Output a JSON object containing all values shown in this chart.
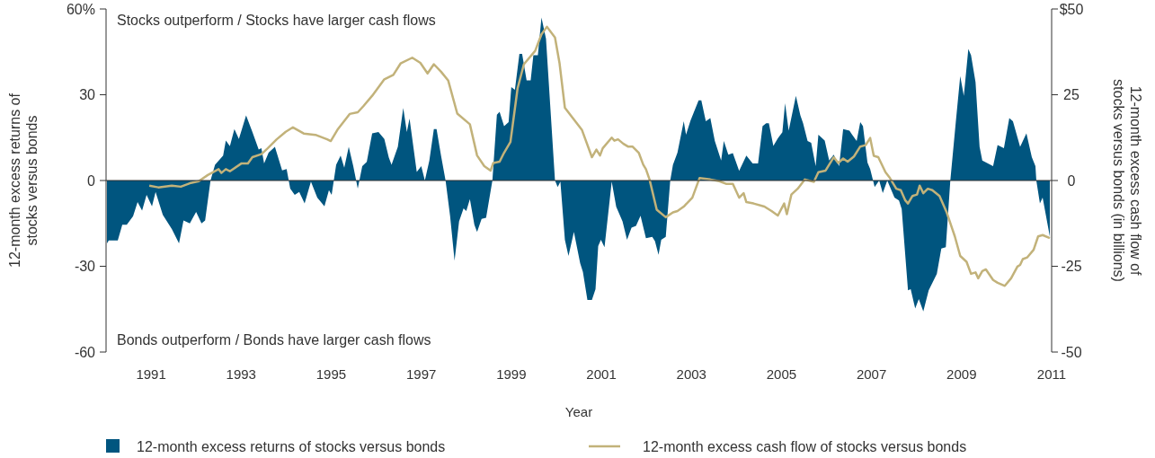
{
  "chart_data": {
    "type": "area",
    "xlabel": "Year",
    "ylabel": "12-month excess returns of stocks versus bonds",
    "y2label": "12-month excess cash flow of stocks versus bonds (in billions)",
    "annotations": [
      "Stocks outperform / Stocks have larger cash flows",
      "Bonds outperform / Bonds have larger cash flows"
    ],
    "xlim": [
      1990,
      2011
    ],
    "xticks": [
      1991,
      1993,
      1995,
      1997,
      1999,
      2001,
      2003,
      2005,
      2007,
      2009,
      2011
    ],
    "ylim": [
      -60,
      60
    ],
    "yticks": [
      {
        "value": 60,
        "label": "60%"
      },
      30,
      0,
      -30,
      -60
    ],
    "y2lim": [
      -50,
      50
    ],
    "y2ticks": [
      {
        "value": 50,
        "label": "$50"
      },
      25,
      0,
      -25,
      -50
    ],
    "ref_lines": [
      {
        "axis": "y",
        "value": 0,
        "color": "#333333"
      }
    ],
    "grid": false,
    "legend": "bottom",
    "series": [
      {
        "name": "12-month excess returns of stocks versus bonds",
        "color": "#00557f",
        "x": [
          1990.02,
          1990.06,
          1990.26,
          1990.36,
          1990.46,
          1990.6,
          1990.7,
          1990.8,
          1990.9,
          1991.02,
          1991.1,
          1991.26,
          1991.46,
          1991.62,
          1991.72,
          1991.86,
          1992,
          1992.12,
          1992.2,
          1992.32,
          1992.42,
          1992.6,
          1992.66,
          1992.75,
          1992.85,
          1992.95,
          1993.11,
          1993.25,
          1993.39,
          1993.45,
          1993.51,
          1993.61,
          1993.75,
          1993.91,
          1994.01,
          1994.09,
          1994.19,
          1994.29,
          1994.41,
          1994.55,
          1994.69,
          1994.85,
          1994.95,
          1995.01,
          1995.11,
          1995.21,
          1995.29,
          1995.39,
          1995.49,
          1995.59,
          1995.69,
          1995.79,
          1995.91,
          1996.05,
          1996.18,
          1996.28,
          1996.34,
          1996.48,
          1996.6,
          1996.68,
          1996.74,
          1996.9,
          1997,
          1997.08,
          1997.18,
          1997.28,
          1997.34,
          1997.44,
          1997.54,
          1997.64,
          1997.74,
          1997.84,
          1997.94,
          1998,
          1998.08,
          1998.18,
          1998.24,
          1998.34,
          1998.44,
          1998.58,
          1998.68,
          1998.74,
          1998.84,
          1998.94,
          1999,
          1999.08,
          1999.18,
          1999.24,
          1999.34,
          1999.43,
          1999.49,
          1999.59,
          1999.67,
          1999.77,
          1999.97,
          2000.03,
          2000.09,
          2000.19,
          2000.27,
          2000.39,
          2000.53,
          2000.59,
          2000.69,
          2000.79,
          2000.87,
          2000.93,
          2000.99,
          2001.07,
          2001.23,
          2001.33,
          2001.47,
          2001.57,
          2001.67,
          2001.77,
          2001.87,
          2001.99,
          2002.13,
          2002.19,
          2002.27,
          2002.33,
          2002.43,
          2002.53,
          2002.59,
          2002.69,
          2002.83,
          2002.88,
          2002.98,
          2003.16,
          2003.22,
          2003.32,
          2003.42,
          2003.52,
          2003.66,
          2003.72,
          2003.82,
          2003.92,
          2004.06,
          2004.22,
          2004.36,
          2004.48,
          2004.58,
          2004.66,
          2004.72,
          2004.82,
          2004.92,
          2005.02,
          2005.08,
          2005.16,
          2005.32,
          2005.42,
          2005.48,
          2005.58,
          2005.66,
          2005.76,
          2005.82,
          2005.96,
          2006.06,
          2006.16,
          2006.28,
          2006.37,
          2006.51,
          2006.57,
          2006.67,
          2006.75,
          2006.81,
          2006.91,
          2006.97,
          2007.07,
          2007.17,
          2007.25,
          2007.35,
          2007.51,
          2007.61,
          2007.67,
          2007.81,
          2007.87,
          2007.97,
          2008.05,
          2008.15,
          2008.27,
          2008.45,
          2008.55,
          2008.65,
          2008.75,
          2008.87,
          2008.97,
          2009.05,
          2009.15,
          2009.21,
          2009.31,
          2009.4,
          2009.46,
          2009.7,
          2009.8,
          2009.94,
          2010.06,
          2010.14,
          2010.3,
          2010.44,
          2010.56,
          2010.64,
          2010.66,
          2010.74,
          2010.8,
          2010.96
        ],
        "values": [
          -22,
          -21,
          -21,
          -15.5,
          -15.5,
          -12.5,
          -7.5,
          -10.5,
          -5,
          -9,
          -4,
          -12,
          -17,
          -22,
          -14,
          -15,
          -11,
          -15,
          -14,
          0,
          5.5,
          8.7,
          14,
          12,
          18,
          14.5,
          22.8,
          17,
          10.8,
          11.3,
          6,
          9.7,
          11.8,
          3.5,
          4,
          -2.8,
          -5,
          -4,
          -8,
          -0.4,
          -6,
          -9,
          -3.4,
          -5,
          5.5,
          8.7,
          4.5,
          11.8,
          5,
          -2.8,
          5,
          6.5,
          16.5,
          17,
          14.5,
          8,
          5.5,
          11.8,
          25.4,
          17,
          21.7,
          3,
          5,
          0,
          7,
          18,
          18,
          8.6,
          0,
          -12.3,
          -28,
          -14.3,
          -9.7,
          -10.7,
          -6.5,
          -15.5,
          -18,
          -13.4,
          -13,
          0,
          23,
          24,
          19,
          20.4,
          32.7,
          31.7,
          44.3,
          44.3,
          35,
          35,
          43.8,
          43.8,
          57,
          49.6,
          0,
          -2.3,
          -0.4,
          -20.7,
          -26.4,
          -18,
          -29,
          -32,
          -41.8,
          -41.8,
          -38,
          -22.9,
          -20.7,
          -23.3,
          -0.4,
          -9.2,
          -14.3,
          -20.7,
          -16.5,
          -15.9,
          -12.3,
          -20.2,
          -19.7,
          -21.2,
          -26,
          -20.7,
          -19.7,
          0,
          5.5,
          9.7,
          20.7,
          16,
          21,
          28,
          28,
          20.7,
          21.8,
          13.8,
          7,
          13.8,
          9,
          9.6,
          3.4,
          8.7,
          6,
          6,
          19,
          20,
          20,
          12.1,
          14.8,
          16.9,
          27,
          17.4,
          29.6,
          22.8,
          20,
          13.8,
          13.2,
          5,
          16,
          14,
          7,
          9,
          5,
          18,
          17.4,
          16,
          13.8,
          20.4,
          19,
          6.3,
          4,
          -2.3,
          0,
          -4.4,
          0,
          -6,
          -7,
          -10,
          -38.4,
          -38,
          -44.8,
          -41.5,
          -45.8,
          -38.4,
          -32.7,
          -23.8,
          -23.3,
          0,
          20.2,
          36.5,
          29.6,
          46,
          43.8,
          34.4,
          11.8,
          7,
          5,
          12.4,
          11.3,
          21.8,
          20.7,
          11.8,
          16.5,
          8.2,
          5,
          0,
          -8,
          -6,
          -19.6
        ]
      },
      {
        "name": "12-month excess cash flow of stocks versus bonds",
        "type": "line",
        "axis": "y2",
        "color": "#c2b27a",
        "x": [
          1990.96,
          1991.16,
          1991.46,
          1991.66,
          1991.86,
          1992.06,
          1992.26,
          1992.5,
          1992.56,
          1992.66,
          1992.75,
          1993.01,
          1993.15,
          1993.25,
          1993.45,
          1993.59,
          1993.79,
          1993.99,
          1994.15,
          1994.39,
          1994.65,
          1994.91,
          1994.99,
          1995.15,
          1995.41,
          1995.59,
          1995.71,
          1995.91,
          1996.18,
          1996.38,
          1996.54,
          1996.8,
          1996.98,
          1997.14,
          1997.28,
          1997.44,
          1997.6,
          1997.8,
          1998.08,
          1998.24,
          1998.4,
          1998.54,
          1998.6,
          1998.74,
          1998.84,
          1998.98,
          1999.14,
          1999.28,
          1999.53,
          1999.67,
          1999.79,
          1999.97,
          2000.07,
          2000.19,
          2000.37,
          2000.57,
          2000.79,
          2000.89,
          2000.97,
          2001.03,
          2001.23,
          2001.29,
          2001.37,
          2001.49,
          2001.59,
          2001.69,
          2001.83,
          2001.93,
          2001.99,
          2002.07,
          2002.23,
          2002.43,
          2002.59,
          2002.69,
          2002.83,
          2003.02,
          2003.18,
          2003.42,
          2003.62,
          2003.78,
          2003.92,
          2004.06,
          2004.16,
          2004.22,
          2004.38,
          2004.62,
          2004.78,
          2004.92,
          2005.06,
          2005.12,
          2005.22,
          2005.36,
          2005.52,
          2005.72,
          2005.82,
          2005.98,
          2006.16,
          2006.26,
          2006.37,
          2006.47,
          2006.61,
          2006.75,
          2006.87,
          2006.97,
          2007.05,
          2007.15,
          2007.31,
          2007.41,
          2007.55,
          2007.65,
          2007.75,
          2007.81,
          2007.91,
          2008.01,
          2008.07,
          2008.15,
          2008.25,
          2008.35,
          2008.51,
          2008.67,
          2008.85,
          2008.97,
          2009.11,
          2009.21,
          2009.31,
          2009.37,
          2009.46,
          2009.54,
          2009.7,
          2009.8,
          2009.96,
          2010.1,
          2010.24,
          2010.3,
          2010.36,
          2010.46,
          2010.6,
          2010.7,
          2010.8,
          2010.96
        ],
        "values": [
          -1.5,
          -2,
          -1.5,
          -1.8,
          -0.8,
          -0.2,
          1.6,
          3.3,
          2.2,
          3.3,
          2.7,
          5,
          5,
          6.8,
          7.7,
          9.4,
          12,
          14.2,
          15.5,
          13.7,
          13.3,
          12,
          11.5,
          15,
          19.4,
          19.9,
          21.6,
          24.7,
          29.5,
          30.8,
          34.1,
          35.8,
          34.3,
          31.2,
          33.9,
          31.7,
          29.1,
          19.5,
          16.4,
          7.3,
          4.2,
          2.9,
          5.1,
          5.5,
          8.1,
          11.2,
          26.9,
          33.9,
          37.8,
          42.6,
          44.8,
          41.7,
          34.3,
          21.2,
          18.1,
          14.7,
          6.8,
          9,
          7.3,
          9.4,
          12.5,
          11.6,
          12,
          10.7,
          9.9,
          9.9,
          8.1,
          4.6,
          3.3,
          0.3,
          -8.5,
          -10.7,
          -9.3,
          -8.9,
          -7.6,
          -5,
          0.7,
          0.3,
          -0.2,
          -1,
          -1,
          -5,
          -3.7,
          -6.3,
          -6.7,
          -7.6,
          -8.9,
          -10.2,
          -6.7,
          -9.8,
          -4.1,
          -2.4,
          0.3,
          -0.4,
          2.4,
          2.9,
          6.8,
          5.1,
          6.4,
          5.5,
          7,
          9.9,
          10.3,
          12.4,
          7.2,
          6.8,
          2.4,
          0.7,
          -2.4,
          -2.8,
          -5.8,
          -6.7,
          -4.5,
          -4.1,
          -1.5,
          -3.7,
          -2.4,
          -2.8,
          -4.5,
          -9.3,
          -16.3,
          -22,
          -23.7,
          -27.2,
          -26.8,
          -28.5,
          -26.4,
          -25.9,
          -29,
          -29.8,
          -30.7,
          -28.5,
          -25.1,
          -24.6,
          -22.9,
          -22.4,
          -20.2,
          -16.3,
          -15.9,
          -16.8
        ]
      }
    ]
  }
}
